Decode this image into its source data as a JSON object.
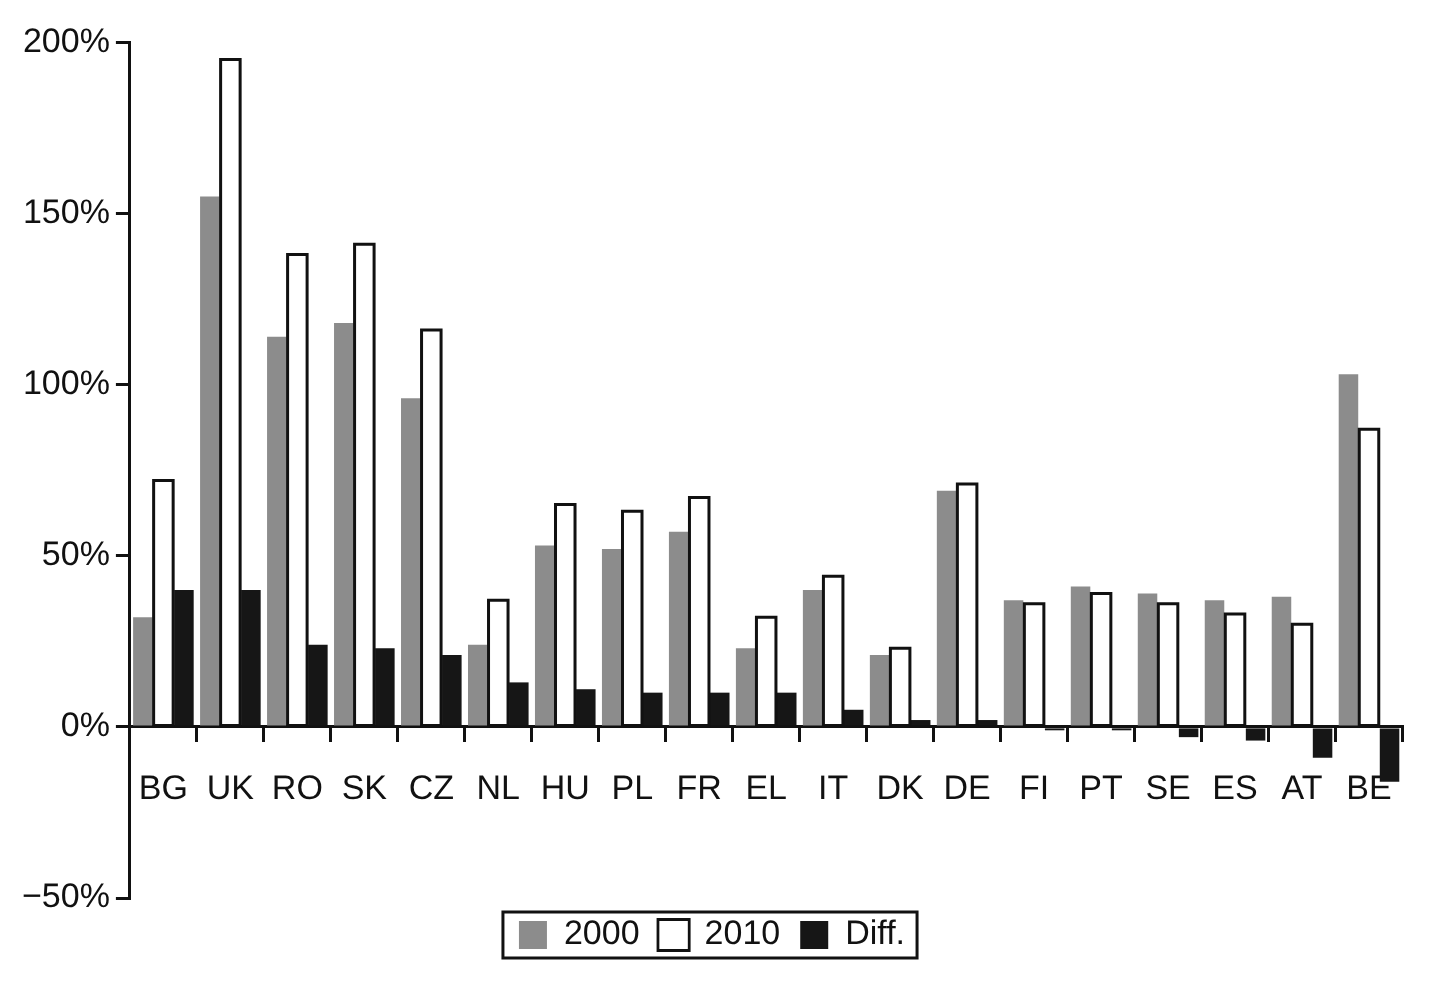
{
  "chart_data": {
    "type": "bar",
    "categories": [
      "BG",
      "UK",
      "RO",
      "SK",
      "CZ",
      "NL",
      "HU",
      "PL",
      "FR",
      "EL",
      "IT",
      "DK",
      "DE",
      "FI",
      "PT",
      "SE",
      "ES",
      "AT",
      "BE"
    ],
    "series": [
      {
        "name": "2000",
        "color": "#8c8c8c",
        "values": [
          32,
          155,
          114,
          118,
          96,
          24,
          53,
          52,
          57,
          23,
          40,
          21,
          69,
          37,
          41,
          39,
          37,
          38,
          103
        ]
      },
      {
        "name": "2010",
        "color": "#ffffff",
        "values": [
          72,
          195,
          138,
          141,
          116,
          37,
          65,
          63,
          67,
          32,
          44,
          23,
          71,
          36,
          39,
          36,
          33,
          30,
          87
        ]
      },
      {
        "name": "Diff.",
        "color": "#161616",
        "values": [
          40,
          40,
          24,
          23,
          21,
          13,
          11,
          10,
          10,
          10,
          5,
          2,
          2,
          -1,
          -1,
          -3,
          -4,
          -9,
          -16
        ]
      }
    ],
    "ylim": [
      -50,
      200
    ],
    "yticks": [
      {
        "value": -50,
        "label": "−50%"
      },
      {
        "value": 0,
        "label": "0%"
      },
      {
        "value": 50,
        "label": "50%"
      },
      {
        "value": 100,
        "label": "100%"
      },
      {
        "value": 150,
        "label": "150%"
      },
      {
        "value": 200,
        "label": "200%"
      }
    ],
    "grid": false,
    "legend": "bottom"
  }
}
